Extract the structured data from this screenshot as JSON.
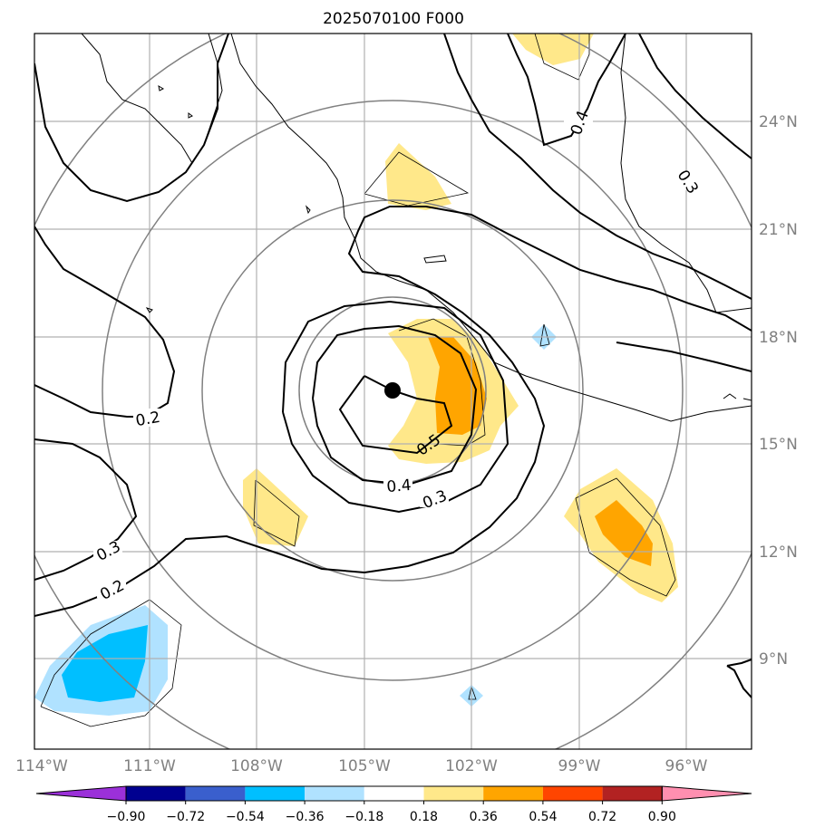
{
  "title": "2025070100 F000",
  "map": {
    "lat_labels": [
      "24°N",
      "21°N",
      "18°N",
      "15°N",
      "12°N",
      "9°N"
    ],
    "lon_labels": [
      "114°W",
      "111°W",
      "108°W",
      "105°W",
      "102°W",
      "99°W",
      "96°W"
    ],
    "contour_labels": [
      "0.2",
      "0.3",
      "0.4",
      "0.5",
      "0.4",
      "0.3",
      "0.3",
      "0.2"
    ],
    "storm_center": {
      "lon": -104.3,
      "lat": 16.5
    },
    "range_rings_deg": [
      2,
      4,
      6,
      8
    ]
  },
  "colorbar": {
    "ticks": [
      "−0.90",
      "−0.72",
      "−0.54",
      "−0.36",
      "−0.18",
      "0.18",
      "0.36",
      "0.54",
      "0.72",
      "0.90"
    ],
    "colors": {
      "below": "#9b30d9",
      "bins": [
        "#000090",
        "#3a5fcd",
        "#00bfff",
        "#b0e2ff",
        "#ffffff",
        "#ffe88a",
        "#ffa500",
        "#ff4500",
        "#b22222"
      ],
      "above": "#ff8fb0"
    }
  },
  "colors": {
    "ring": "#808080",
    "grid": "#b0b0b0",
    "contour": "#000000",
    "coast": "#000000"
  }
}
